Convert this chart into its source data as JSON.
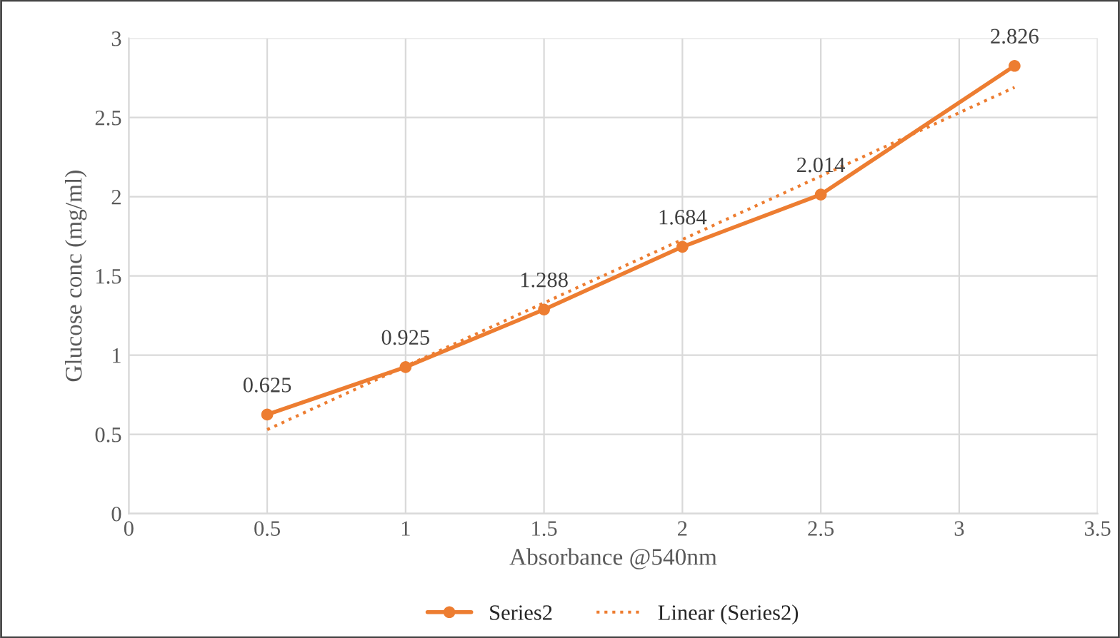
{
  "chart_data": {
    "type": "line",
    "xlabel": "Absorbance @540nm",
    "ylabel": "Glucose conc (mg/ml)",
    "xlim": [
      0,
      3.5
    ],
    "xticks": [
      0,
      0.5,
      1,
      1.5,
      2,
      2.5,
      3,
      3.5
    ],
    "ylim": [
      0,
      3
    ],
    "yticks": [
      0,
      0.5,
      1,
      1.5,
      2,
      2.5,
      3
    ],
    "grid": true,
    "legend": "bottom",
    "series": [
      {
        "name": "Series2",
        "color": "#ed7d31",
        "x": [
          0.5,
          1,
          1.5,
          2,
          2.5,
          3.2
        ],
        "values": [
          0.625,
          0.925,
          1.288,
          1.684,
          2.014,
          2.826
        ],
        "value_labels": [
          "0.625",
          "0.925",
          "1.288",
          "1.684",
          "2.014",
          "2.826"
        ],
        "marker": "circle",
        "line_style": "solid"
      },
      {
        "name": "Linear (Series2)",
        "color": "#ed7d31",
        "x": [
          0.5,
          3.2
        ],
        "values": [
          0.53,
          2.69
        ],
        "marker": "none",
        "line_style": "dotted"
      }
    ]
  }
}
